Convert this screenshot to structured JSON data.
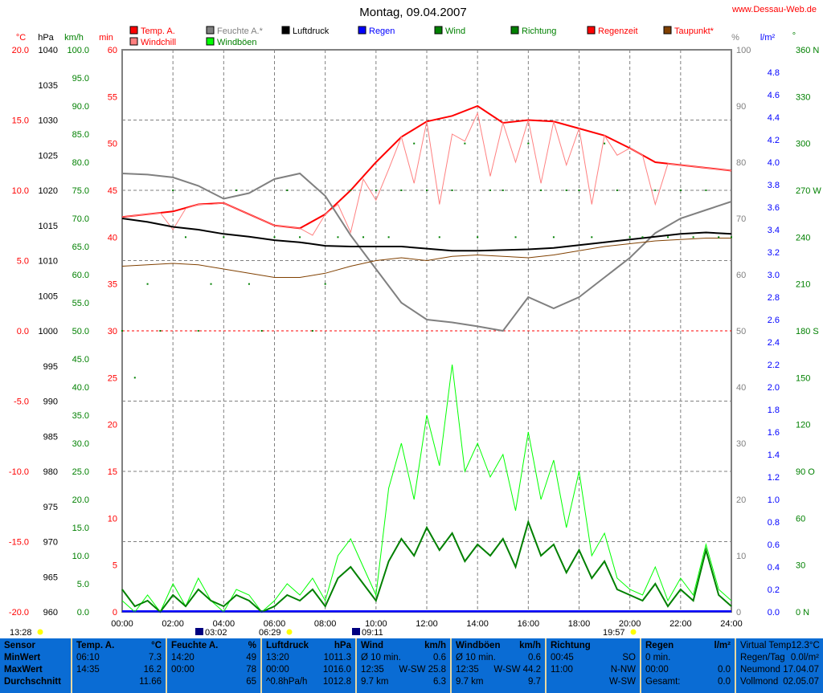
{
  "title": "Montag, 09.04.2007",
  "site": "www.Dessau-Web.de",
  "legend": [
    {
      "label": "Temp. A.",
      "color": "#ff0000",
      "text_color": "#ff0000"
    },
    {
      "label": "Windchill",
      "color": "#ff8080",
      "text_color": "#ff0000"
    },
    {
      "label": "Feuchte A.*",
      "color": "#808080",
      "text_color": "#808080"
    },
    {
      "label": "Windböen",
      "color": "#00ff00",
      "text_color": "#008000"
    },
    {
      "label": "Luftdruck",
      "color": "#000000",
      "text_color": "#000000"
    },
    {
      "label": "Regen",
      "color": "#0000ff",
      "text_color": "#0000ff"
    },
    {
      "label": "Wind",
      "color": "#008000",
      "text_color": "#008000"
    },
    {
      "label": "Richtung",
      "color": "#008000",
      "text_color": "#008000"
    },
    {
      "label": "Regenzeit",
      "color": "#ff0000",
      "text_color": "#ff0000"
    },
    {
      "label": "Taupunkt*",
      "color": "#804000",
      "text_color": "#ff0000"
    }
  ],
  "chart_data": {
    "type": "line",
    "x_unit": "hour",
    "xlim": [
      0,
      24
    ],
    "x_ticks": [
      "00:00",
      "02:00",
      "04:00",
      "06:00",
      "08:00",
      "10:00",
      "12:00",
      "14:00",
      "16:00",
      "18:00",
      "20:00",
      "22:00",
      "24:00"
    ],
    "axes": {
      "temp": {
        "unit": "°C",
        "range": [
          -20,
          20
        ],
        "ticks": [
          "20.0",
          "15.0",
          "10.0",
          "5.0",
          "0.0",
          "-5.0",
          "-10.0",
          "-15.0",
          "-20.0"
        ]
      },
      "pressure": {
        "unit": "hPa",
        "range": [
          960,
          1040
        ],
        "ticks": [
          "1040",
          "1035",
          "1030",
          "1025",
          "1020",
          "1015",
          "1010",
          "1005",
          "1000",
          "995",
          "990",
          "985",
          "980",
          "975",
          "970",
          "965",
          "960"
        ]
      },
      "speed": {
        "unit": "km/h",
        "range": [
          0,
          100
        ],
        "ticks": [
          "100.0",
          "95.0",
          "90.0",
          "85.0",
          "80.0",
          "75.0",
          "70.0",
          "65.0",
          "60.0",
          "55.0",
          "50.0",
          "45.0",
          "40.0",
          "35.0",
          "30.0",
          "25.0",
          "20.0",
          "15.0",
          "10.0",
          "5.0",
          "0.0"
        ]
      },
      "minutes": {
        "unit": "min",
        "range": [
          0,
          60
        ],
        "ticks": [
          "60",
          "55",
          "50",
          "45",
          "40",
          "35",
          "30",
          "25",
          "20",
          "15",
          "10",
          "5",
          "0"
        ]
      },
      "humidity": {
        "unit": "%",
        "range": [
          0,
          100
        ],
        "ticks": [
          "100",
          "90",
          "80",
          "70",
          "60",
          "50",
          "40",
          "30",
          "20",
          "10",
          "0"
        ]
      },
      "rain": {
        "unit": "l/m²",
        "range": [
          0,
          5
        ],
        "ticks": [
          "4.8",
          "4.6",
          "4.4",
          "4.2",
          "4.0",
          "3.8",
          "3.6",
          "3.4",
          "3.2",
          "3.0",
          "2.8",
          "2.6",
          "2.4",
          "2.2",
          "2.0",
          "1.8",
          "1.6",
          "1.4",
          "1.2",
          "1.0",
          "0.8",
          "0.6",
          "0.4",
          "0.2",
          "0.0"
        ]
      },
      "direction": {
        "unit": "°",
        "range": [
          0,
          360
        ],
        "ticks": [
          "360 N",
          "330",
          "300",
          "270 W",
          "240",
          "210",
          "180 S",
          "150",
          "120",
          "90 O",
          "60",
          "30",
          "0 N"
        ]
      }
    },
    "series": [
      {
        "name": "Temp. A.",
        "axis": "temp",
        "step_h": 1,
        "color": "#ff0000",
        "values": [
          8.1,
          8.3,
          8.5,
          9.0,
          9.1,
          8.3,
          7.5,
          7.3,
          8.3,
          10.0,
          12.0,
          13.8,
          14.9,
          15.3,
          16.0,
          14.8,
          15.0,
          14.9,
          14.4,
          13.9,
          13.0,
          12.0,
          11.8,
          11.6,
          11.4
        ]
      },
      {
        "name": "Windchill",
        "axis": "temp",
        "step_h": 0.5,
        "color": "#ff8080",
        "values": [
          8.1,
          8.2,
          8.3,
          8.4,
          7.2,
          8.7,
          9.0,
          9.0,
          9.1,
          8.7,
          8.3,
          7.9,
          7.5,
          7.4,
          7.3,
          6.8,
          8.3,
          9.0,
          7.0,
          10.8,
          9.3,
          11.5,
          13.8,
          10.5,
          14.9,
          9.0,
          14.0,
          13.5,
          15.5,
          11.0,
          14.8,
          12.0,
          15.0,
          10.5,
          14.9,
          11.8,
          14.4,
          9.0,
          13.9,
          12.5,
          13.0,
          12.5,
          9.0,
          11.9,
          11.8,
          11.7,
          11.6,
          11.5,
          11.4
        ]
      },
      {
        "name": "Feuchte A.*",
        "axis": "humidity",
        "step_h": 1,
        "color": "#808080",
        "values": [
          78,
          77.8,
          77.3,
          75.8,
          73.5,
          74.5,
          77,
          78,
          74,
          67,
          61,
          55,
          52,
          51.5,
          50.8,
          50,
          56,
          54,
          56,
          59.5,
          63,
          67.4,
          70,
          71.5,
          73
        ]
      },
      {
        "name": "Luftdruck",
        "axis": "pressure",
        "step_h": 1,
        "color": "#000000",
        "values": [
          1016,
          1015.5,
          1014.8,
          1014.4,
          1013.8,
          1013.4,
          1012.9,
          1012.6,
          1012.1,
          1012,
          1012,
          1012,
          1011.7,
          1011.4,
          1011.4,
          1011.5,
          1011.6,
          1011.8,
          1012.2,
          1012.6,
          1013,
          1013.4,
          1013.8,
          1014,
          1013.8
        ]
      },
      {
        "name": "Taupunkt*",
        "axis": "temp",
        "step_h": 1,
        "color": "#804000",
        "values": [
          4.6,
          4.7,
          4.8,
          4.7,
          4.4,
          4.1,
          3.8,
          3.8,
          4.1,
          4.6,
          5.0,
          5.2,
          5.0,
          5.3,
          5.4,
          5.3,
          5.2,
          5.4,
          5.7,
          6.0,
          6.2,
          6.4,
          6.5,
          6.6,
          6.6
        ]
      },
      {
        "name": "Windböen",
        "axis": "speed",
        "step_h": 0.5,
        "color": "#00ff00",
        "values": [
          2,
          0,
          3,
          0,
          5,
          1,
          6,
          2,
          0,
          4,
          3,
          0,
          2,
          5,
          3,
          6,
          2,
          10,
          13,
          8,
          3,
          22,
          30,
          20,
          35,
          26,
          44,
          25,
          30,
          24,
          28,
          18,
          32,
          20,
          27,
          15,
          25,
          10,
          14,
          6,
          4,
          3,
          8,
          2,
          6,
          3,
          12,
          4,
          2
        ]
      },
      {
        "name": "Wind",
        "axis": "speed",
        "step_h": 0.5,
        "color": "#008000",
        "values": [
          4,
          1,
          2,
          0,
          3,
          1,
          4,
          2,
          1,
          3,
          2,
          0,
          1,
          3,
          2,
          4,
          1,
          6,
          8,
          5,
          2,
          9,
          13,
          10,
          15,
          11,
          14,
          9,
          12,
          10,
          13,
          8,
          16,
          10,
          12,
          7,
          11,
          6,
          9,
          4,
          3,
          2,
          5,
          1,
          4,
          2,
          11,
          3,
          1
        ]
      },
      {
        "name": "Regen",
        "axis": "rain",
        "step_h": 1,
        "color": "#0000ff",
        "values": [
          0,
          0,
          0,
          0,
          0,
          0,
          0,
          0,
          0,
          0,
          0,
          0,
          0,
          0,
          0,
          0,
          0,
          0,
          0,
          0,
          0,
          0,
          0,
          0,
          0
        ]
      }
    ],
    "direction_points": {
      "name": "Richtung",
      "axis": "direction",
      "step_h": 0.5,
      "color": "#008000",
      "values": [
        180,
        150,
        210,
        180,
        270,
        240,
        180,
        210,
        240,
        270,
        210,
        180,
        240,
        270,
        240,
        180,
        210,
        240,
        270,
        240,
        270,
        240,
        270,
        300,
        270,
        240,
        270,
        300,
        240,
        270,
        270,
        240,
        300,
        270,
        240,
        270,
        270,
        240,
        300,
        270,
        240,
        240,
        270,
        240,
        270,
        240,
        270,
        240,
        240
      ]
    }
  },
  "astro": [
    {
      "time": "13:28",
      "icon": "moon-rise"
    },
    {
      "time": "03:02",
      "icon": "moon-set"
    },
    {
      "time": "06:29",
      "icon": "sunrise"
    },
    {
      "time": "09:11",
      "icon": "moon-phase"
    },
    {
      "time": "19:57",
      "icon": "sunset"
    }
  ],
  "table": {
    "sensor": [
      "Sensor",
      "MinWert",
      "MaxWert",
      "Durchschnitt"
    ],
    "temp": {
      "title": "Temp. A.",
      "unit": "°C",
      "rows": [
        [
          "06:10",
          "7.3"
        ],
        [
          "14:35",
          "16.2"
        ],
        [
          "",
          "11.66"
        ]
      ]
    },
    "humidity": {
      "title": "Feuchte A.",
      "unit": "%",
      "rows": [
        [
          "14:20",
          "49"
        ],
        [
          "00:00",
          "78"
        ],
        [
          "",
          "65"
        ]
      ]
    },
    "pressure": {
      "title": "Luftdruck",
      "unit": "hPa",
      "rows": [
        [
          "13:20",
          "1011.3"
        ],
        [
          "00:00",
          "1016.0"
        ],
        [
          "^0.8hPa/h",
          "1012.8"
        ]
      ]
    },
    "wind": {
      "title": "Wind",
      "unit": "km/h",
      "rows": [
        [
          "Ø 10 min.",
          "0.6"
        ],
        [
          "12:35",
          "W-SW 25.8"
        ],
        [
          "9.7 km",
          "6.3"
        ]
      ]
    },
    "gusts": {
      "title": "Windböen",
      "unit": "km/h",
      "rows": [
        [
          "Ø 10 min.",
          "0.6"
        ],
        [
          "12:35",
          "W-SW 44.2"
        ],
        [
          "9.7 km",
          "9.7"
        ]
      ]
    },
    "direction": {
      "title": "Richtung",
      "unit": "",
      "rows": [
        [
          "00:45",
          "SO"
        ],
        [
          "11:00",
          "N-NW"
        ],
        [
          "",
          "W-SW"
        ]
      ]
    },
    "rain": {
      "title": "Regen",
      "unit": "l/m²",
      "rows": [
        [
          "0 min.",
          ""
        ],
        [
          "00:00",
          "0.0"
        ],
        [
          "Gesamt:",
          "0.0"
        ]
      ]
    },
    "extra": {
      "rows": [
        [
          "Virtual Temp",
          "12.3°C"
        ],
        [
          "Regen/Tag",
          "0.0l/m²"
        ],
        [
          "Neumond",
          "17.04.07"
        ],
        [
          "Vollmond",
          "02.05.07"
        ]
      ]
    }
  }
}
